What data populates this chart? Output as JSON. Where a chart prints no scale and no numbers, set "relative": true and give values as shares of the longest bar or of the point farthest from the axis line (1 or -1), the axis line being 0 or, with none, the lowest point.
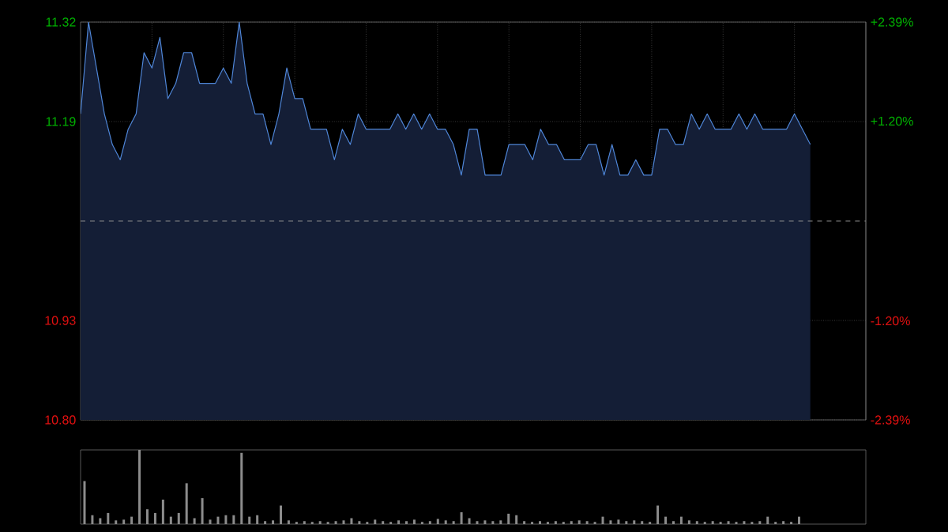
{
  "chart_data": [
    {
      "type": "area",
      "categories": [
        null,
        null,
        null,
        null,
        null,
        null,
        null,
        null,
        null,
        null,
        null,
        null,
        null,
        null,
        null,
        null,
        null,
        null,
        null,
        null,
        null,
        null,
        null,
        null,
        null,
        null,
        null,
        null,
        null,
        null,
        null,
        null,
        null,
        null,
        null,
        null,
        null,
        null,
        null,
        null,
        null,
        null,
        null,
        null,
        null,
        null,
        null,
        null,
        null,
        null,
        null,
        null,
        null,
        null,
        null,
        null,
        null,
        null,
        null,
        null,
        null,
        null,
        null,
        null,
        null,
        null,
        null,
        null,
        null,
        null,
        null,
        null,
        null,
        null,
        null,
        null,
        null,
        null,
        null,
        null,
        null,
        null,
        null,
        null,
        null,
        null,
        null,
        null,
        null,
        null,
        null,
        null,
        null,
        null,
        null,
        null,
        null,
        null,
        null,
        null
      ],
      "values": [
        11.2,
        11.32,
        11.26,
        11.2,
        11.16,
        11.14,
        11.18,
        11.2,
        11.28,
        11.26,
        11.3,
        11.22,
        11.24,
        11.28,
        11.28,
        11.24,
        11.24,
        11.24,
        11.26,
        11.24,
        11.32,
        11.24,
        11.2,
        11.2,
        11.16,
        11.2,
        11.26,
        11.22,
        11.22,
        11.18,
        11.18,
        11.18,
        11.14,
        11.18,
        11.16,
        11.2,
        11.18,
        11.18,
        11.18,
        11.18,
        11.2,
        11.18,
        11.2,
        11.18,
        11.2,
        11.18,
        11.18,
        11.16,
        11.12,
        11.18,
        11.18,
        11.12,
        11.12,
        11.12,
        11.16,
        11.16,
        11.16,
        11.14,
        11.18,
        11.16,
        11.16,
        11.14,
        11.14,
        11.14,
        11.16,
        11.16,
        11.12,
        11.16,
        11.12,
        11.12,
        11.14,
        11.12,
        11.12,
        11.18,
        11.18,
        11.16,
        11.16,
        11.2,
        11.18,
        11.2,
        11.18,
        11.18,
        11.18,
        11.2,
        11.18,
        11.2,
        11.18,
        11.18,
        11.18,
        11.18,
        11.2,
        11.18,
        11.16,
        null,
        null,
        null,
        null,
        null,
        null,
        null
      ],
      "color": "#4f86d8",
      "ylim": [
        10.8,
        11.32
      ],
      "yticks": [
        11.32,
        11.19,
        10.93,
        {
          "value": 10.8,
          "label": "10.80"
        }
      ],
      "y2lim": [
        -2.39,
        2.39
      ],
      "y2ticks": [
        {
          "value": 2.39,
          "label": "+2.39%"
        },
        {
          "value": 1.2,
          "label": "+1.20%"
        },
        {
          "value": -1.2,
          "label": "-1.20%"
        },
        {
          "value": -2.39,
          "label": "-2.39%"
        }
      ],
      "grid": true,
      "tick_labels": "y",
      "ref_lines": [
        {
          "axis": "y",
          "value": 11.06,
          "color": "#8a8a8a",
          "line_style": "dashed"
        }
      ]
    },
    {
      "type": "bar",
      "relative": true,
      "categories": [
        null,
        null,
        null,
        null,
        null,
        null,
        null,
        null,
        null,
        null,
        null,
        null,
        null,
        null,
        null,
        null,
        null,
        null,
        null,
        null,
        null,
        null,
        null,
        null,
        null,
        null,
        null,
        null,
        null,
        null,
        null,
        null,
        null,
        null,
        null,
        null,
        null,
        null,
        null,
        null,
        null,
        null,
        null,
        null,
        null,
        null,
        null,
        null,
        null,
        null,
        null,
        null,
        null,
        null,
        null,
        null,
        null,
        null,
        null,
        null,
        null,
        null,
        null,
        null,
        null,
        null,
        null,
        null,
        null,
        null,
        null,
        null,
        null,
        null,
        null,
        null,
        null,
        null,
        null,
        null,
        null,
        null,
        null,
        null,
        null,
        null,
        null,
        null,
        null,
        null,
        null,
        null,
        null,
        null,
        null,
        null,
        null,
        null,
        null,
        null
      ],
      "values": [
        0.58,
        0.12,
        0.08,
        0.15,
        0.05,
        0.06,
        0.1,
        1,
        0.2,
        0.15,
        0.33,
        0.1,
        0.15,
        0.55,
        0.08,
        0.35,
        0.06,
        0.1,
        0.12,
        0.12,
        0.96,
        0.1,
        0.12,
        0.04,
        0.05,
        0.25,
        0.05,
        0.03,
        0.04,
        0.03,
        0.04,
        0.03,
        0.04,
        0.05,
        0.08,
        0.04,
        0.03,
        0.06,
        0.04,
        0.03,
        0.05,
        0.04,
        0.06,
        0.03,
        0.04,
        0.07,
        0.05,
        0.04,
        0.16,
        0.08,
        0.04,
        0.05,
        0.04,
        0.05,
        0.14,
        0.12,
        0.04,
        0.03,
        0.04,
        0.03,
        0.04,
        0.03,
        0.04,
        0.05,
        0.04,
        0.03,
        0.1,
        0.05,
        0.06,
        0.04,
        0.05,
        0.04,
        0.03,
        0.25,
        0.1,
        0.04,
        0.1,
        0.05,
        0.04,
        0.03,
        0.04,
        0.03,
        0.04,
        0.03,
        0.04,
        0.03,
        0.04,
        0.1,
        0.03,
        0.04,
        0.03,
        0.1,
        null,
        null,
        null,
        null,
        null,
        null,
        null,
        null
      ],
      "color": "#8c8c8c",
      "tick_labels": false
    }
  ]
}
